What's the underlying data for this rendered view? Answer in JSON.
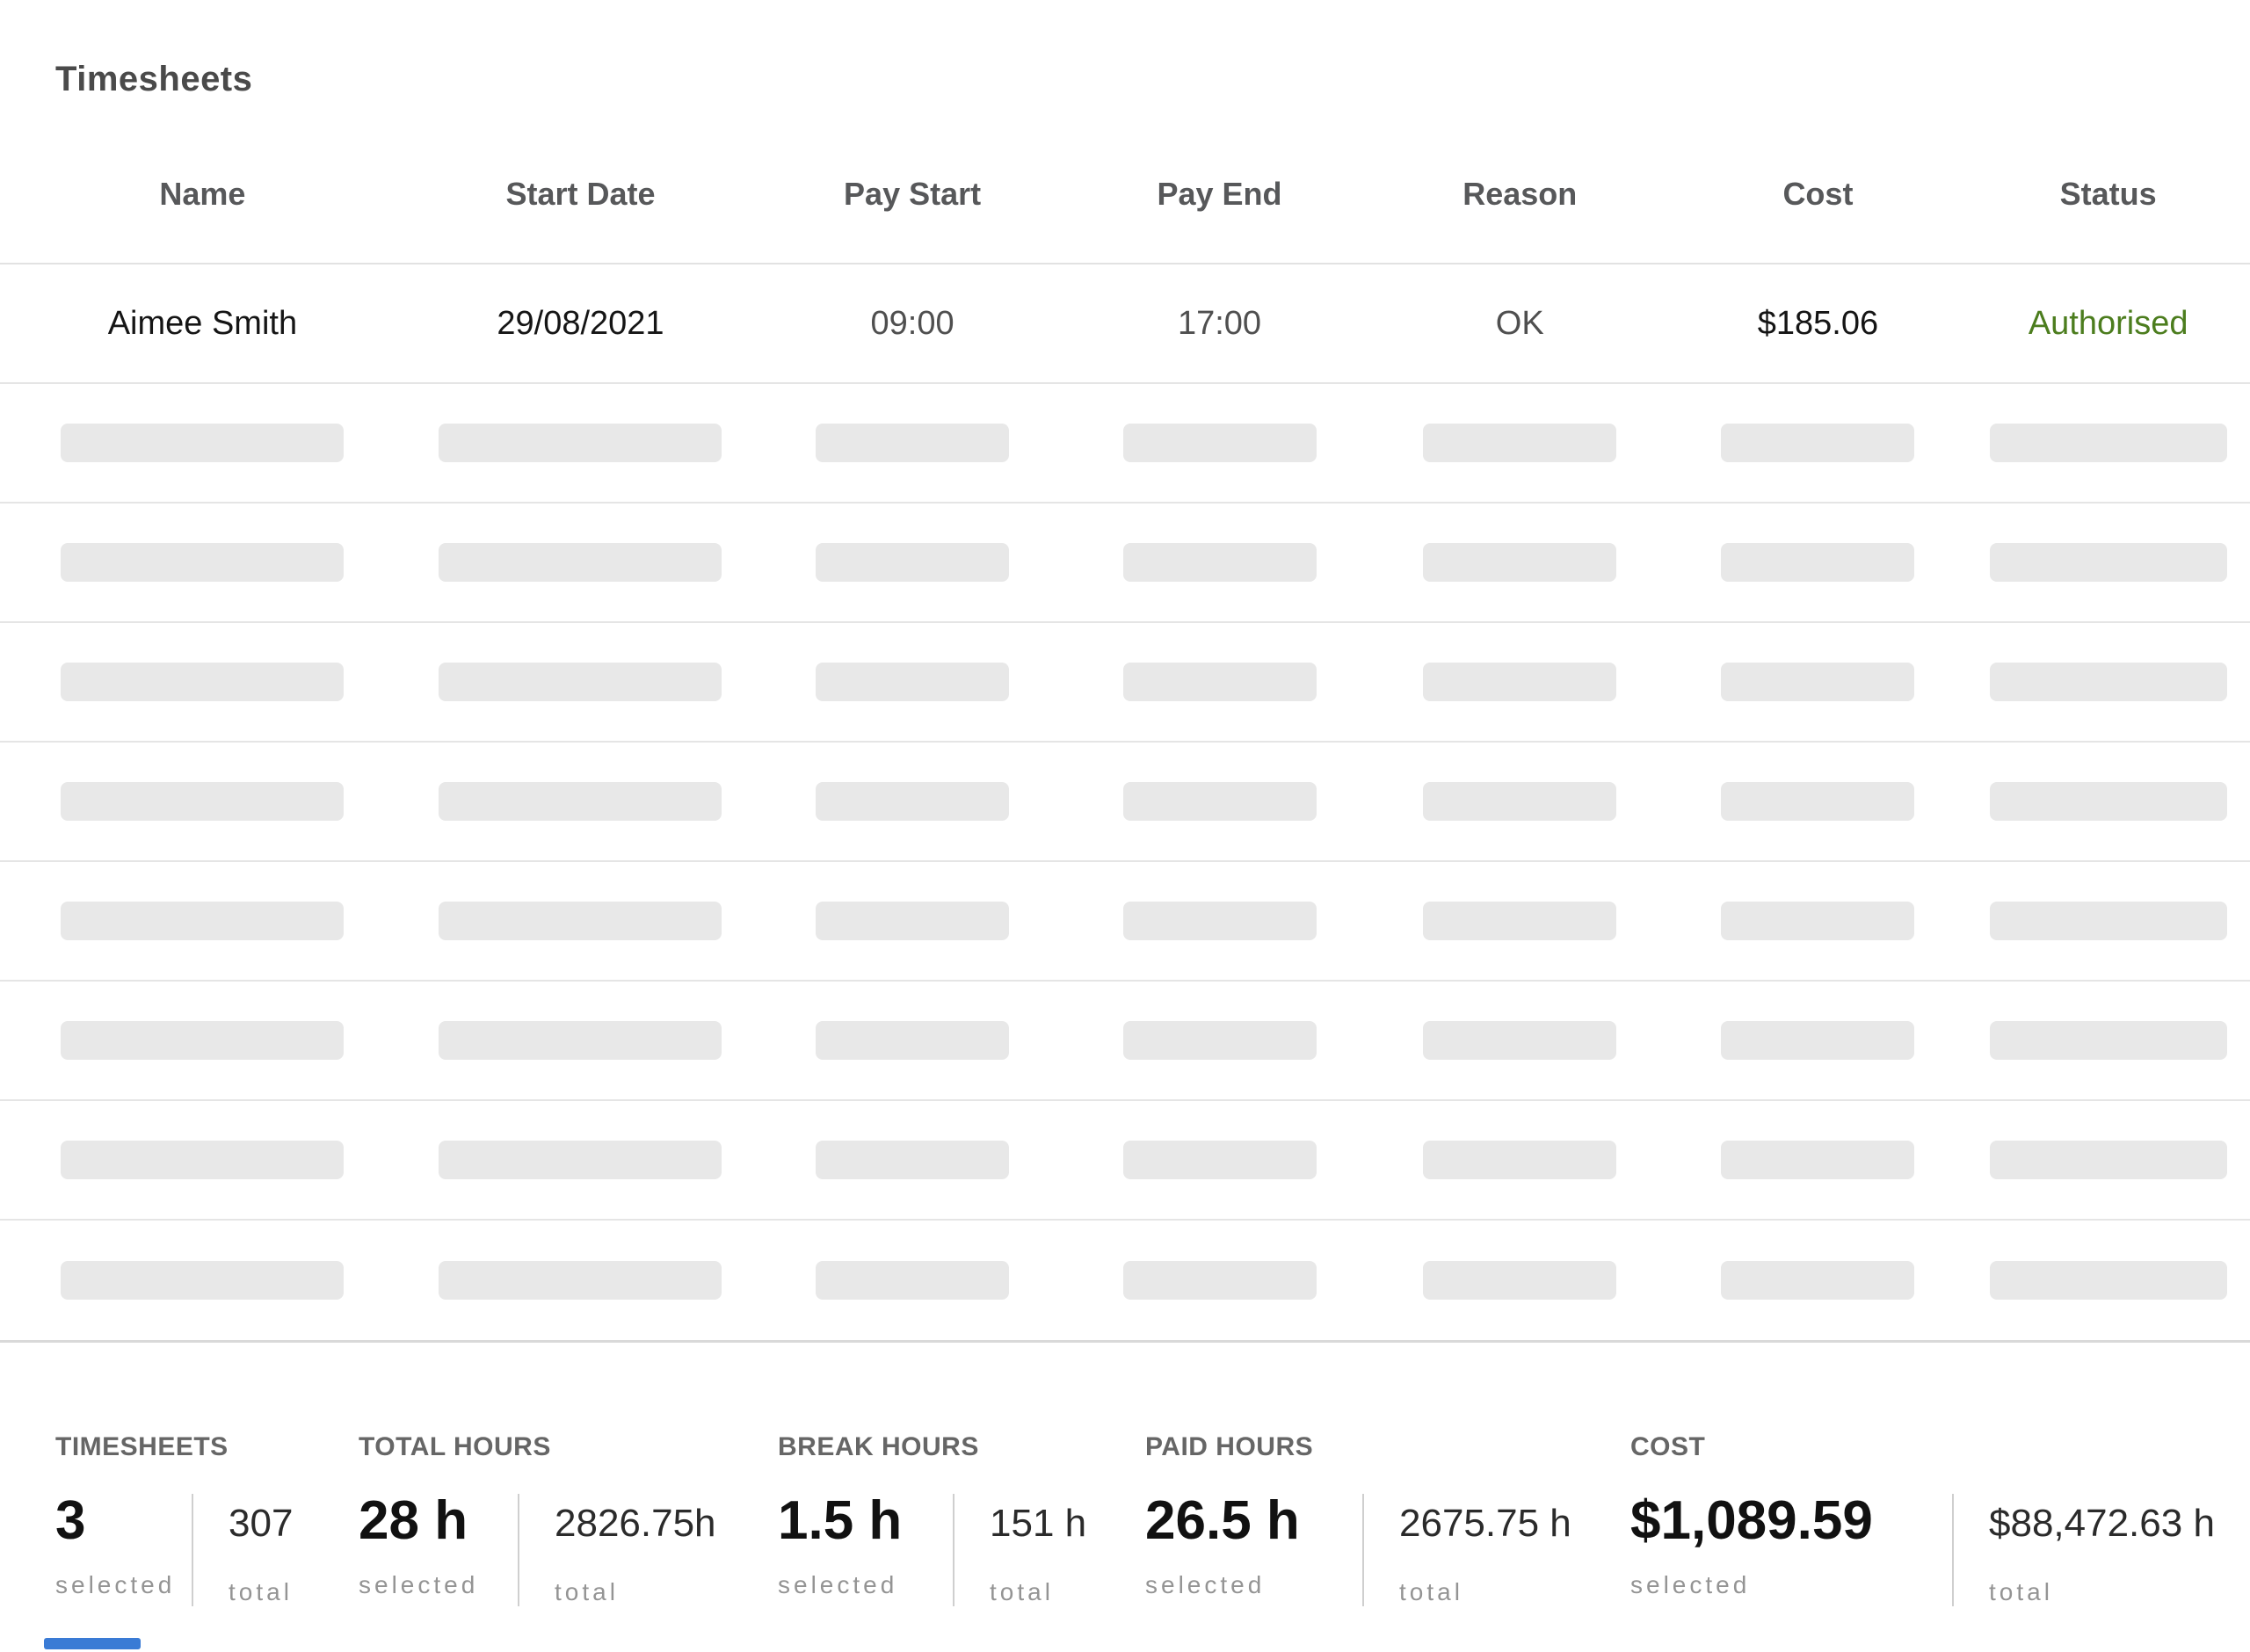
{
  "page": {
    "title": "Timesheets"
  },
  "table": {
    "columns": [
      "Name",
      "Start Date",
      "Pay Start",
      "Pay End",
      "Reason",
      "Cost",
      "Status"
    ],
    "row": {
      "name": "Aimee Smith",
      "start_date": "29/08/2021",
      "pay_start": "09:00",
      "pay_end": "17:00",
      "reason": "OK",
      "cost": "$185.06",
      "status": "Authorised"
    },
    "skeleton": {
      "rows": 8,
      "columns": 7
    }
  },
  "summary": {
    "selected_caption": "selected",
    "total_caption": "total",
    "groups": [
      {
        "label": "TIMESHEETS",
        "selected_value": "3",
        "total_value": "307"
      },
      {
        "label": "TOTAL HOURS",
        "selected_value": "28 h",
        "total_value": "2826.75h"
      },
      {
        "label": "BREAK HOURS",
        "selected_value": "1.5 h",
        "total_value": "151 h"
      },
      {
        "label": "PAID HOURS",
        "selected_value": "26.5 h",
        "total_value": "2675.75 h"
      },
      {
        "label": "COST",
        "selected_value": "$1,089.59",
        "total_value": "$88,472.63 h"
      }
    ]
  },
  "colors": {
    "status_authorised_green": "#4c7d1e",
    "accent_blue": "#3a7bd5"
  }
}
